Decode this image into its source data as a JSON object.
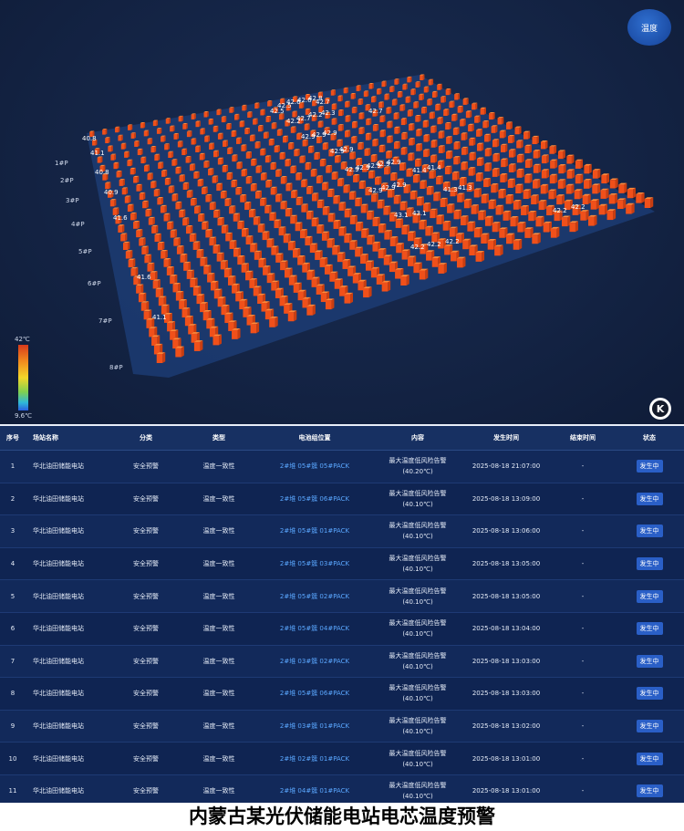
{
  "viz": {
    "temp_button": "温度",
    "legend_max": "42℃",
    "legend_min": "9.6℃",
    "logo": "K",
    "row_labels": [
      "1#P",
      "2#P",
      "3#P",
      "4#P",
      "5#P",
      "6#P",
      "7#P",
      "8#P"
    ],
    "value_labels": [
      "40.8",
      "41.1",
      "40.8",
      "40.9",
      "41.6",
      "41.6",
      "41.1",
      "42.5",
      "42.5",
      "42.6",
      "42.6",
      "42.8",
      "42.7",
      "42.2",
      "42.7",
      "42.2",
      "42.3",
      "42.7",
      "42.9",
      "42.9",
      "42.9",
      "42.9",
      "42.9",
      "42.9",
      "42.9",
      "42.9",
      "42.9",
      "42.9",
      "42.9",
      "42.9",
      "42.9",
      "41.4",
      "41.4",
      "41.3",
      "41.3",
      "43.1",
      "43.1",
      "42.2",
      "42.2",
      "42.2",
      "42.2",
      "42.2"
    ]
  },
  "table": {
    "headers": [
      "序号",
      "场站名称",
      "分类",
      "类型",
      "电池组位置",
      "内容",
      "发生时间",
      "结束时间",
      "状态"
    ],
    "rows": [
      {
        "no": "1",
        "station": "华北油田储能电站",
        "category": "安全预警",
        "type": "温度一致性",
        "location": "2#堆 05#簇 05#PACK",
        "content_line1": "最大温度低风险告警",
        "content_line2": "(40.20℃)",
        "start": "2025-08-18 21:07:00",
        "end": "-",
        "status": "发生中"
      },
      {
        "no": "2",
        "station": "华北油田储能电站",
        "category": "安全预警",
        "type": "温度一致性",
        "location": "2#堆 05#簇 06#PACK",
        "content_line1": "最大温度低风险告警",
        "content_line2": "(40.10℃)",
        "start": "2025-08-18 13:09:00",
        "end": "-",
        "status": "发生中"
      },
      {
        "no": "3",
        "station": "华北油田储能电站",
        "category": "安全预警",
        "type": "温度一致性",
        "location": "2#堆 05#簇 01#PACK",
        "content_line1": "最大温度低风险告警",
        "content_line2": "(40.10℃)",
        "start": "2025-08-18 13:06:00",
        "end": "-",
        "status": "发生中"
      },
      {
        "no": "4",
        "station": "华北油田储能电站",
        "category": "安全预警",
        "type": "温度一致性",
        "location": "2#堆 05#簇 03#PACK",
        "content_line1": "最大温度低风险告警",
        "content_line2": "(40.10℃)",
        "start": "2025-08-18 13:05:00",
        "end": "-",
        "status": "发生中"
      },
      {
        "no": "5",
        "station": "华北油田储能电站",
        "category": "安全预警",
        "type": "温度一致性",
        "location": "2#堆 05#簇 02#PACK",
        "content_line1": "最大温度低风险告警",
        "content_line2": "(40.10℃)",
        "start": "2025-08-18 13:05:00",
        "end": "-",
        "status": "发生中"
      },
      {
        "no": "6",
        "station": "华北油田储能电站",
        "category": "安全预警",
        "type": "温度一致性",
        "location": "2#堆 05#簇 04#PACK",
        "content_line1": "最大温度低风险告警",
        "content_line2": "(40.10℃)",
        "start": "2025-08-18 13:04:00",
        "end": "-",
        "status": "发生中"
      },
      {
        "no": "7",
        "station": "华北油田储能电站",
        "category": "安全预警",
        "type": "温度一致性",
        "location": "2#堆 03#簇 02#PACK",
        "content_line1": "最大温度低风险告警",
        "content_line2": "(40.10℃)",
        "start": "2025-08-18 13:03:00",
        "end": "-",
        "status": "发生中"
      },
      {
        "no": "8",
        "station": "华北油田储能电站",
        "category": "安全预警",
        "type": "温度一致性",
        "location": "2#堆 05#簇 06#PACK",
        "content_line1": "最大温度低风险告警",
        "content_line2": "(40.10℃)",
        "start": "2025-08-18 13:03:00",
        "end": "-",
        "status": "发生中"
      },
      {
        "no": "9",
        "station": "华北油田储能电站",
        "category": "安全预警",
        "type": "温度一致性",
        "location": "2#堆 03#簇 01#PACK",
        "content_line1": "最大温度低风险告警",
        "content_line2": "(40.10℃)",
        "start": "2025-08-18 13:02:00",
        "end": "-",
        "status": "发生中"
      },
      {
        "no": "10",
        "station": "华北油田储能电站",
        "category": "安全预警",
        "type": "温度一致性",
        "location": "2#堆 02#簇 01#PACK",
        "content_line1": "最大温度低风险告警",
        "content_line2": "(40.10℃)",
        "start": "2025-08-18 13:01:00",
        "end": "-",
        "status": "发生中"
      },
      {
        "no": "11",
        "station": "华北油田储能电站",
        "category": "安全预警",
        "type": "温度一致性",
        "location": "2#堆 04#簇 01#PACK",
        "content_line1": "最大温度低风险告警",
        "content_line2": "(40.10℃)",
        "start": "2025-08-18 13:01:00",
        "end": "-",
        "status": "发生中"
      }
    ]
  },
  "caption": "内蒙古某光伏储能电站电芯温度预警",
  "colors": {
    "cell_front": "#f0501a",
    "cell_top": "#ff8a3a",
    "cell_side": "#c93d10",
    "platform": "#1d3f7a"
  }
}
